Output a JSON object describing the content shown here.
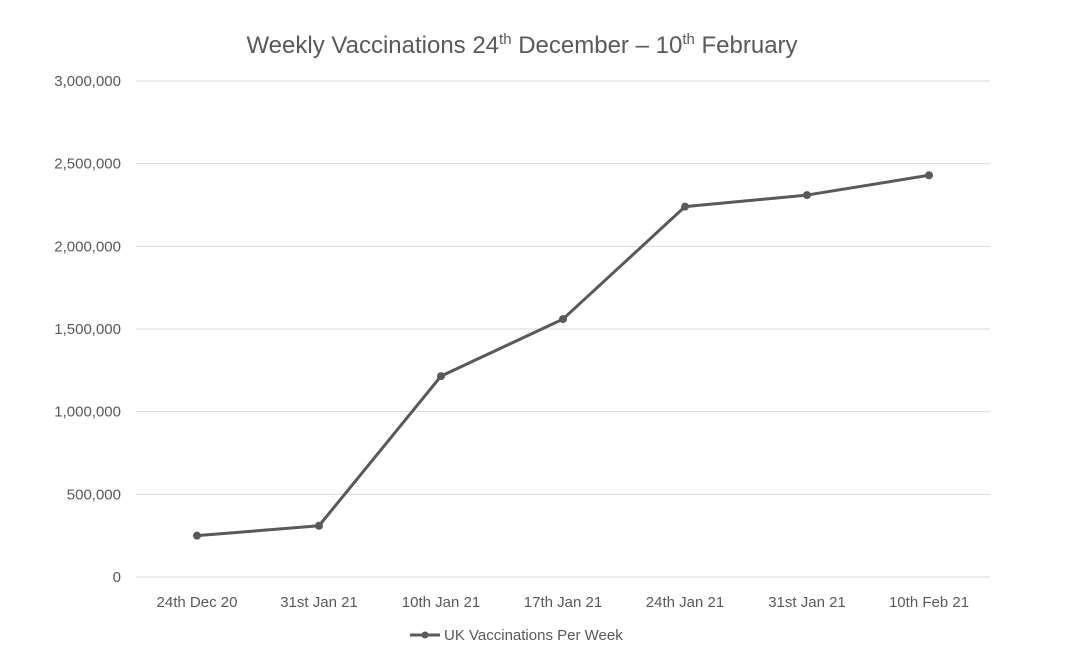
{
  "chart_data": {
    "type": "line",
    "title": {
      "part1": "Weekly Vaccinations 24",
      "sup1": "th",
      "part2": " December – 10",
      "sup2": "th",
      "part3": " February"
    },
    "xlabel": "",
    "ylabel": "",
    "categories": [
      "24th Dec 20",
      "31st Jan 21",
      "10th Jan 21",
      "17th Jan 21",
      "24th Jan 21",
      "31st Jan 21",
      "10th Feb 21"
    ],
    "series": [
      {
        "name": "UK Vaccinations Per Week",
        "values": [
          250000,
          310000,
          1215000,
          1560000,
          2240000,
          2310000,
          2430000
        ]
      }
    ],
    "yticks": [
      "0",
      "500,000",
      "1,000,000",
      "1,500,000",
      "2,000,000",
      "2,500,000",
      "3,000,000"
    ],
    "ylim": [
      0,
      3000000
    ],
    "grid": true,
    "legend_position": "bottom",
    "colors": {
      "series": "#595959",
      "grid": "#d9d9d9",
      "text": "#595959"
    }
  }
}
